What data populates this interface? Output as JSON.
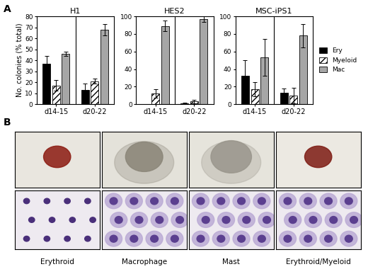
{
  "panel_labels": [
    "A",
    "B"
  ],
  "chart_data": [
    {
      "type": "bar",
      "title": "H1",
      "ylabel": "No. colonies (% total)",
      "categories": [
        "d14-15",
        "d20-22"
      ],
      "series": [
        {
          "name": "Ery",
          "color": "#000000",
          "values": [
            37,
            13
          ],
          "errors": [
            7,
            6
          ]
        },
        {
          "name": "Myeloid",
          "color": "#ffffff",
          "values": [
            17,
            21
          ],
          "errors": [
            5,
            2
          ]
        },
        {
          "name": "Mac",
          "color": "#a6a6a6",
          "values": [
            46,
            68
          ],
          "errors": [
            2,
            5
          ]
        }
      ],
      "ylim": [
        0,
        80
      ],
      "yticks": [
        0,
        10,
        20,
        30,
        40,
        50,
        60,
        70,
        80
      ]
    },
    {
      "type": "bar",
      "title": "HES2",
      "categories": [
        "d14-15",
        "d20-22"
      ],
      "series": [
        {
          "name": "Ery",
          "color": "#000000",
          "values": [
            0,
            1
          ],
          "errors": [
            0,
            1
          ]
        },
        {
          "name": "Myeloid",
          "color": "#ffffff",
          "values": [
            12,
            3
          ],
          "errors": [
            5,
            2
          ]
        },
        {
          "name": "Mac",
          "color": "#a6a6a6",
          "values": [
            89,
            97
          ],
          "errors": [
            6,
            3
          ]
        }
      ],
      "ylim": [
        0,
        100
      ],
      "yticks": [
        0,
        20,
        40,
        60,
        80,
        100
      ]
    },
    {
      "type": "bar",
      "title": "MSC-iPS1",
      "categories": [
        "d14-15",
        "d20-22"
      ],
      "series": [
        {
          "name": "Ery",
          "color": "#000000",
          "values": [
            32,
            13
          ],
          "errors": [
            18,
            5
          ]
        },
        {
          "name": "Myeloid",
          "color": "#ffffff",
          "values": [
            17,
            10
          ],
          "errors": [
            8,
            9
          ]
        },
        {
          "name": "Mac",
          "color": "#a6a6a6",
          "values": [
            53,
            78
          ],
          "errors": [
            21,
            13
          ]
        }
      ],
      "ylim": [
        0,
        100
      ],
      "yticks": [
        0,
        20,
        40,
        60,
        80,
        100
      ],
      "legend": "right"
    }
  ],
  "images": {
    "captions": [
      "Erythroid",
      "Macrophage",
      "Mast",
      "Erythroid/Myeloid"
    ]
  }
}
